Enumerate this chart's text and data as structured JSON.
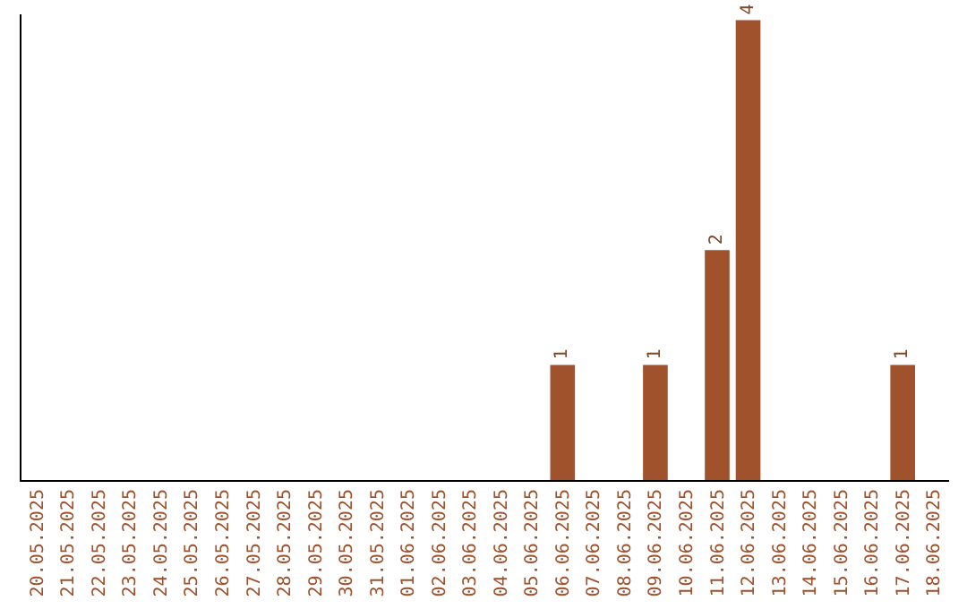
{
  "chart_data": {
    "type": "bar",
    "categories": [
      "20.05.2025",
      "21.05.2025",
      "22.05.2025",
      "23.05.2025",
      "24.05.2025",
      "25.05.2025",
      "26.05.2025",
      "27.05.2025",
      "28.05.2025",
      "29.05.2025",
      "30.05.2025",
      "31.05.2025",
      "01.06.2025",
      "02.06.2025",
      "03.06.2025",
      "04.06.2025",
      "05.06.2025",
      "06.06.2025",
      "07.06.2025",
      "08.06.2025",
      "09.06.2025",
      "10.06.2025",
      "11.06.2025",
      "12.06.2025",
      "13.06.2025",
      "14.06.2025",
      "15.06.2025",
      "16.06.2025",
      "17.06.2025",
      "18.06.2025"
    ],
    "values": [
      null,
      null,
      null,
      null,
      null,
      null,
      null,
      null,
      null,
      null,
      null,
      null,
      null,
      null,
      null,
      null,
      null,
      1,
      null,
      null,
      1,
      null,
      2,
      4,
      null,
      null,
      null,
      null,
      1,
      null
    ],
    "value_labels": [
      null,
      null,
      null,
      null,
      null,
      null,
      null,
      null,
      null,
      null,
      null,
      null,
      null,
      null,
      null,
      null,
      null,
      "1",
      null,
      null,
      "1",
      null,
      "2",
      "4",
      null,
      null,
      null,
      null,
      "1",
      null
    ],
    "color": "#a0522d",
    "ylim": [
      0,
      4.05
    ],
    "tick_labels": "x",
    "grid": false
  }
}
